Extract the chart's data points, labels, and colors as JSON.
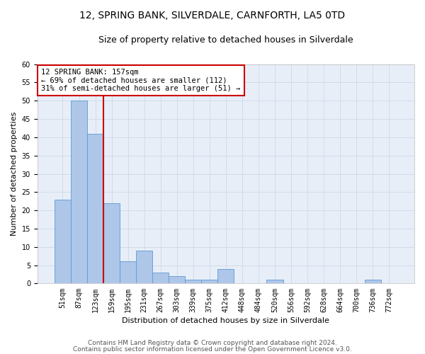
{
  "title": "12, SPRING BANK, SILVERDALE, CARNFORTH, LA5 0TD",
  "subtitle": "Size of property relative to detached houses in Silverdale",
  "xlabel": "Distribution of detached houses by size in Silverdale",
  "ylabel": "Number of detached properties",
  "categories": [
    "51sqm",
    "87sqm",
    "123sqm",
    "159sqm",
    "195sqm",
    "231sqm",
    "267sqm",
    "303sqm",
    "339sqm",
    "375sqm",
    "412sqm",
    "448sqm",
    "484sqm",
    "520sqm",
    "556sqm",
    "592sqm",
    "628sqm",
    "664sqm",
    "700sqm",
    "736sqm",
    "772sqm"
  ],
  "values": [
    23,
    50,
    41,
    22,
    6,
    9,
    3,
    2,
    1,
    1,
    4,
    0,
    0,
    1,
    0,
    0,
    0,
    0,
    0,
    1,
    0
  ],
  "bar_color": "#aec6e8",
  "bar_edge_color": "#5b9bd5",
  "highlight_line_color": "#cc0000",
  "annotation_line1": "12 SPRING BANK: 157sqm",
  "annotation_line2": "← 69% of detached houses are smaller (112)",
  "annotation_line3": "31% of semi-detached houses are larger (51) →",
  "annotation_box_color": "#cc0000",
  "ylim": [
    0,
    60
  ],
  "yticks": [
    0,
    5,
    10,
    15,
    20,
    25,
    30,
    35,
    40,
    45,
    50,
    55,
    60
  ],
  "grid_color": "#d0dcea",
  "background_color": "#e8eef8",
  "footer_line1": "Contains HM Land Registry data © Crown copyright and database right 2024.",
  "footer_line2": "Contains public sector information licensed under the Open Government Licence v3.0.",
  "title_fontsize": 10,
  "subtitle_fontsize": 9,
  "axis_label_fontsize": 8,
  "tick_fontsize": 7,
  "annotation_fontsize": 7.5,
  "footer_fontsize": 6.5
}
